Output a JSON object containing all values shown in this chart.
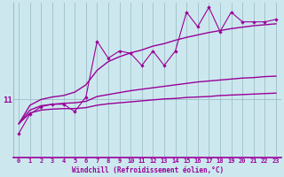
{
  "xlabel": "Windchill (Refroidissement éolien,°C)",
  "background_color": "#cce8ee",
  "grid_color": "#9dbfc8",
  "line_color": "#990099",
  "x_values": [
    0,
    1,
    2,
    3,
    4,
    5,
    6,
    7,
    8,
    9,
    10,
    11,
    12,
    13,
    14,
    15,
    16,
    17,
    18,
    19,
    20,
    21,
    22,
    23
  ],
  "ytick_label": "11",
  "ytick_value": 11.0,
  "ylim_low": 9.8,
  "ylim_high": 13.0,
  "series": {
    "jagged": [
      10.3,
      10.7,
      10.85,
      10.9,
      10.9,
      10.75,
      11.05,
      12.2,
      11.85,
      12.0,
      11.95,
      11.7,
      12.0,
      11.7,
      12.0,
      12.8,
      12.5,
      12.9,
      12.4,
      12.8,
      12.6,
      12.6,
      12.6,
      12.65
    ],
    "smooth_upper": [
      10.5,
      10.88,
      11.0,
      11.05,
      11.08,
      11.15,
      11.3,
      11.6,
      11.78,
      11.88,
      11.96,
      12.02,
      12.1,
      12.15,
      12.22,
      12.28,
      12.33,
      12.38,
      12.42,
      12.46,
      12.49,
      12.52,
      12.54,
      12.56
    ],
    "smooth_mid": [
      10.5,
      10.78,
      10.87,
      10.9,
      10.92,
      10.93,
      10.96,
      11.06,
      11.1,
      11.14,
      11.18,
      11.21,
      11.24,
      11.27,
      11.3,
      11.33,
      11.36,
      11.38,
      11.4,
      11.42,
      11.44,
      11.45,
      11.47,
      11.48
    ],
    "smooth_lower": [
      10.5,
      10.72,
      10.78,
      10.8,
      10.81,
      10.81,
      10.83,
      10.88,
      10.91,
      10.93,
      10.95,
      10.97,
      10.99,
      11.01,
      11.02,
      11.04,
      11.05,
      11.06,
      11.08,
      11.09,
      11.1,
      11.11,
      11.12,
      11.13
    ]
  }
}
